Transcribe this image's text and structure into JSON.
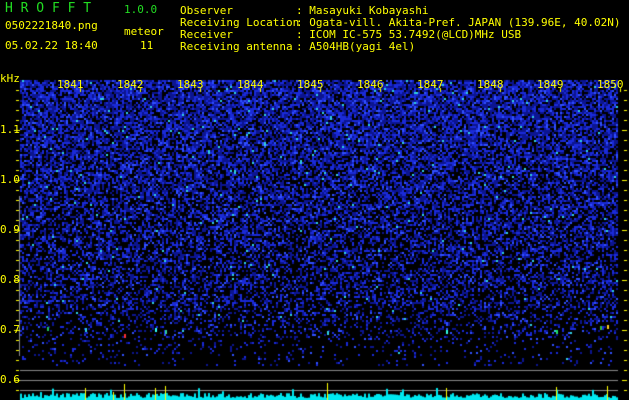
{
  "app": {
    "name": "H R O F F T",
    "version": "1.0.0"
  },
  "file": {
    "name": "0502221840.png",
    "datetime": "05.02.22 18:40"
  },
  "meteor": {
    "label": "meteor",
    "count": "11"
  },
  "info": [
    {
      "label": "Observer",
      "value": ": Masayuki Kobayashi"
    },
    {
      "label": "Receiving Location",
      "value": ": Ogata-vill. Akita-Pref. JAPAN (139.96E, 40.02N)"
    },
    {
      "label": "Receiver",
      "value": ": ICOM IC-575 53.7492(@LCD)MHz USB"
    },
    {
      "label": "Receiving antenna",
      "value": ": A504HB(yagi 4el)"
    }
  ],
  "axis": {
    "unit": "kHz",
    "freq_labels": [
      "1.1",
      "1.0",
      "0.9",
      "0.8",
      "0.7",
      "0.6"
    ],
    "time_labels": [
      "1841",
      "1842",
      "1843",
      "1844",
      "1845",
      "1846",
      "1847",
      "1848",
      "1849",
      "1850"
    ]
  },
  "colors": {
    "text": "#ffff00",
    "title": "#22dd22",
    "noise": "#1a2ad8",
    "level": "#00e8f0",
    "grid": "#888888"
  }
}
